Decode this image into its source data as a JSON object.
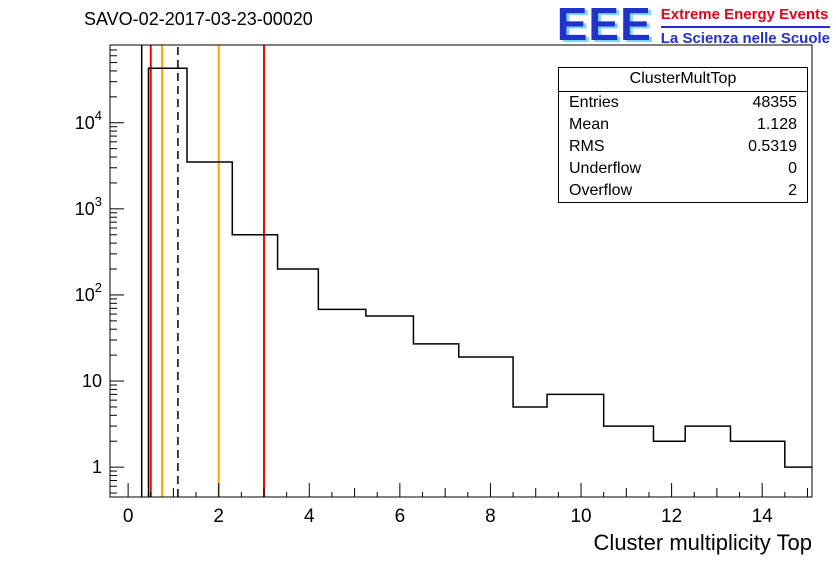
{
  "title": "SAVO-02-2017-03-23-00020",
  "logo": {
    "eee": "EEE",
    "line1": "Extreme Energy Events",
    "line2": "La Scienza nelle Scuole",
    "blue": "#2230cc",
    "cyan": "#7dd8f8",
    "red": "#e8001c"
  },
  "stats": {
    "title": "ClusterMultTop",
    "rows": [
      {
        "label": "Entries",
        "value": "48355"
      },
      {
        "label": "Mean",
        "value": "1.128"
      },
      {
        "label": "RMS",
        "value": "0.5319"
      },
      {
        "label": "Underflow",
        "value": "0"
      },
      {
        "label": "Overflow",
        "value": "2"
      }
    ]
  },
  "chart_data": {
    "type": "bar",
    "subtype": "step-histogram-log-y",
    "title": "SAVO-02-2017-03-23-00020",
    "xlabel": "Cluster multiplicity Top",
    "ylabel": "",
    "x_range": [
      -0.4,
      15.1
    ],
    "y_range": [
      0.45,
      80000
    ],
    "y_scale": "log",
    "grid": false,
    "x_ticks_labeled": [
      0,
      2,
      4,
      6,
      8,
      10,
      12,
      14
    ],
    "y_ticks": [
      {
        "value": 1,
        "label": "1"
      },
      {
        "value": 10,
        "label": "10"
      },
      {
        "value": 100,
        "label": "10",
        "exp": "2"
      },
      {
        "value": 1000,
        "label": "10",
        "exp": "3"
      },
      {
        "value": 10000,
        "label": "10",
        "exp": "4"
      }
    ],
    "steps": [
      {
        "x1": 0.45,
        "x2": 1.3,
        "y": 43000
      },
      {
        "x1": 1.3,
        "x2": 2.3,
        "y": 3500
      },
      {
        "x1": 2.3,
        "x2": 3.3,
        "y": 500
      },
      {
        "x1": 3.3,
        "x2": 4.2,
        "y": 200
      },
      {
        "x1": 4.2,
        "x2": 5.25,
        "y": 68
      },
      {
        "x1": 5.25,
        "x2": 6.3,
        "y": 57
      },
      {
        "x1": 6.3,
        "x2": 7.3,
        "y": 27
      },
      {
        "x1": 7.3,
        "x2": 8.5,
        "y": 19
      },
      {
        "x1": 8.5,
        "x2": 9.25,
        "y": 5
      },
      {
        "x1": 9.25,
        "x2": 10.5,
        "y": 7
      },
      {
        "x1": 10.5,
        "x2": 11.6,
        "y": 3
      },
      {
        "x1": 11.6,
        "x2": 12.3,
        "y": 2
      },
      {
        "x1": 12.3,
        "x2": 13.3,
        "y": 3
      },
      {
        "x1": 13.3,
        "x2": 14.5,
        "y": 2
      },
      {
        "x1": 14.5,
        "x2": 15.1,
        "y": 1
      }
    ],
    "marker_lines": [
      {
        "x": 0.3,
        "color": "#000000",
        "dash": false,
        "w": 1.5,
        "name": "marker-line-black"
      },
      {
        "x": 0.5,
        "color": "#ff0000",
        "dash": false,
        "w": 2,
        "name": "marker-line-red-low"
      },
      {
        "x": 0.75,
        "color": "#ffa500",
        "dash": false,
        "w": 2,
        "name": "marker-line-orange-low"
      },
      {
        "x": 1.1,
        "color": "#000000",
        "dash": true,
        "w": 1.5,
        "name": "marker-line-mean-dashed"
      },
      {
        "x": 2.0,
        "color": "#ffa500",
        "dash": false,
        "w": 2,
        "name": "marker-line-orange-high"
      },
      {
        "x": 3.0,
        "color": "#ff0000",
        "dash": false,
        "w": 2,
        "name": "marker-line-red-high"
      }
    ],
    "entries": 48355,
    "mean": 1.128,
    "rms": 0.5319,
    "underflow": 0,
    "overflow": 2,
    "histogram_color": "#000000",
    "legend_position": "none"
  }
}
